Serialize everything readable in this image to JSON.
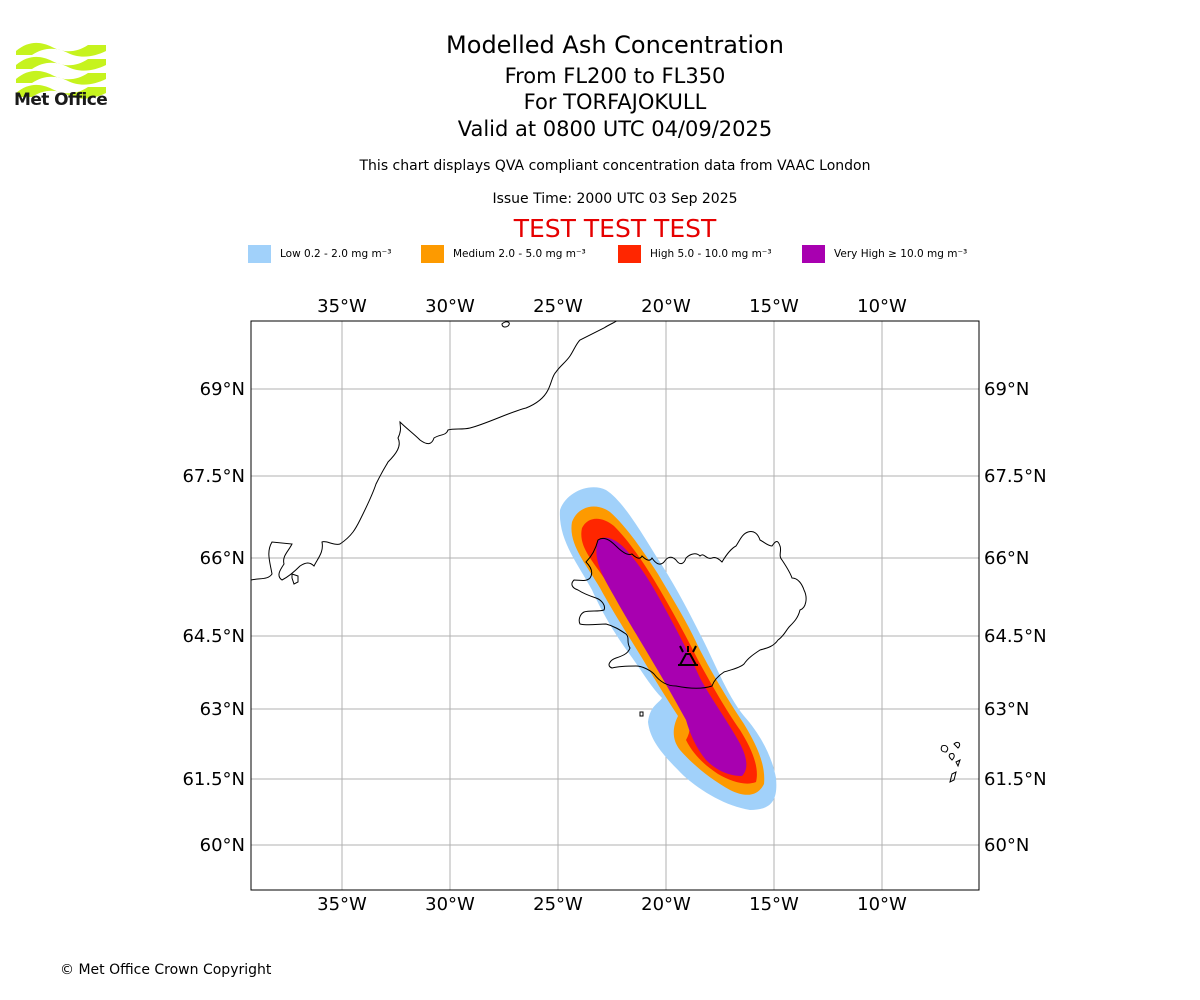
{
  "logo": {
    "text": "Met Office",
    "color": "#c6f31e",
    "icon": "met-office-waves-icon"
  },
  "header": {
    "title": "Modelled Ash Concentration",
    "levels": "From FL200 to FL350",
    "volcano": "For TORFAJOKULL",
    "valid": "Valid at 0800 UTC 04/09/2025",
    "description": "This chart displays QVA compliant concentration data from VAAC London",
    "issue_time": "Issue Time: 2000 UTC 03 Sep 2025",
    "test_banner": "TEST TEST TEST"
  },
  "legend": [
    {
      "label": "Low 0.2 - 2.0 mg m⁻³",
      "color": "#a1d1fa"
    },
    {
      "label": "Medium 2.0 - 5.0 mg m⁻³",
      "color": "#fd9a00"
    },
    {
      "label": "High 5.0 - 10.0 mg m⁻³",
      "color": "#ff2600"
    },
    {
      "label": "Very High ≥ 10.0 mg m⁻³",
      "color": "#a800b0"
    }
  ],
  "map": {
    "lon_ticks": [
      "35°W",
      "30°W",
      "25°W",
      "20°W",
      "15°W",
      "10°W"
    ],
    "lat_ticks": [
      "69°N",
      "67.5°N",
      "66°N",
      "64.5°N",
      "63°N",
      "61.5°N",
      "60°N"
    ],
    "volcano_symbol": "volcano-icon",
    "grid": true
  },
  "footer": {
    "copyright": "© Met Office Crown Copyright"
  }
}
